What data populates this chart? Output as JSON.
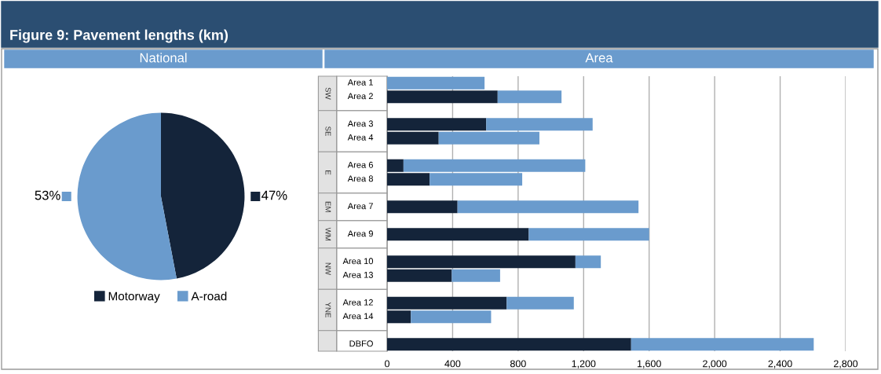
{
  "chart_data": [
    {
      "type": "pie",
      "title": "Figure 9: Pavement lengths (km)",
      "subtitle": "National",
      "categories": [
        "Motorway",
        "A-road"
      ],
      "values": [
        47,
        53
      ],
      "colors": [
        "#14243a",
        "#6a9bcd"
      ],
      "value_labels": [
        "47%",
        "53%"
      ],
      "legend": "bottom"
    },
    {
      "type": "bar",
      "subtitle": "Area",
      "orientation": "horizontal",
      "stacked": true,
      "categories": [
        "Area 1",
        "Area 2",
        null,
        "Area 3",
        "Area 4",
        null,
        "Area 6",
        "Area 8",
        null,
        "Area 7",
        null,
        "Area 9",
        null,
        "Area 10",
        "Area 13",
        null,
        "Area 12",
        "Area 14",
        null,
        "DBFO"
      ],
      "series": [
        {
          "color": "#14243a",
          "values": [
            0,
            675,
            null,
            605,
            315,
            null,
            100,
            260,
            null,
            430,
            null,
            865,
            null,
            1150,
            395,
            null,
            730,
            145,
            null,
            1490
          ]
        },
        {
          "color": "#6a9bcd",
          "values": [
            595,
            390,
            null,
            650,
            615,
            null,
            1110,
            565,
            null,
            1105,
            null,
            735,
            null,
            155,
            295,
            null,
            410,
            490,
            null,
            1115
          ]
        }
      ],
      "annotations": [
        "SW",
        "SE",
        "E",
        "EM",
        "WM",
        "NW",
        "YNE"
      ],
      "xlim": [
        0,
        2800
      ],
      "xticks": [
        0,
        400,
        800,
        {
          "value": 1200,
          "label": "1,200"
        },
        {
          "value": 1600,
          "label": "1,600"
        },
        {
          "value": 2000,
          "label": "2,000"
        },
        {
          "value": 2400,
          "label": "2,400"
        },
        {
          "value": 2800,
          "label": "2,800"
        }
      ],
      "grid": "x",
      "legend": false
    }
  ]
}
